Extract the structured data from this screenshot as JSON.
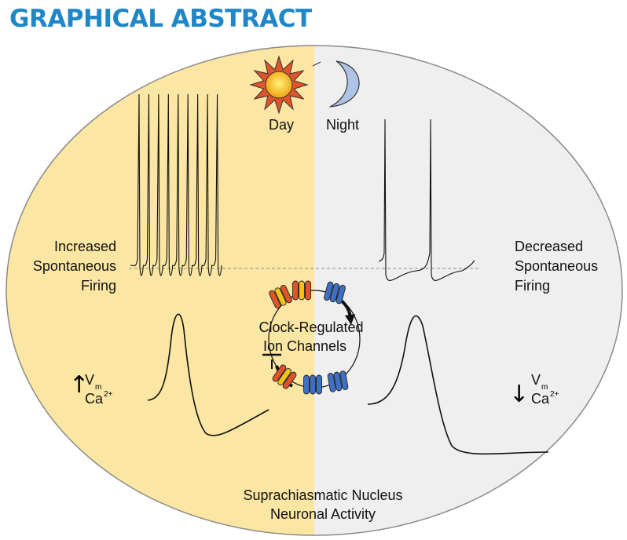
{
  "header": {
    "title": "GRAPHICAL ABSTRACT"
  },
  "phases": {
    "day": "Day",
    "night": "Night"
  },
  "left_panel": {
    "line1": "Increased",
    "line2": "Spontaneous",
    "line3": "Firing"
  },
  "right_panel": {
    "line1": "Decreased",
    "line2": "Spontaneous",
    "line3": "Firing"
  },
  "center": {
    "line1": "Clock-Regulated",
    "line2": "Ion Channels"
  },
  "footer": {
    "line1": "Suprachiasmatic Nucleus",
    "line2": "Neuronal Activity"
  },
  "left_indicator": {
    "arrow": "↑",
    "vm_v": "V",
    "vm_sub": "m",
    "ca": "Ca",
    "ca_sup": "2+"
  },
  "right_indicator": {
    "arrow": "↓",
    "vm_v": "V",
    "vm_sub": "m",
    "ca": "Ca",
    "ca_sup": "2+"
  },
  "colors": {
    "day_bg": "#fbe6a3",
    "night_bg": "#efefef",
    "title": "#1f86c8",
    "channel_red": "#e0542c",
    "channel_yellow": "#f0c419",
    "channel_blue": "#3d6fc4"
  },
  "spike_trains": {
    "day_spike_count": 9,
    "night_spike_count": 2
  }
}
